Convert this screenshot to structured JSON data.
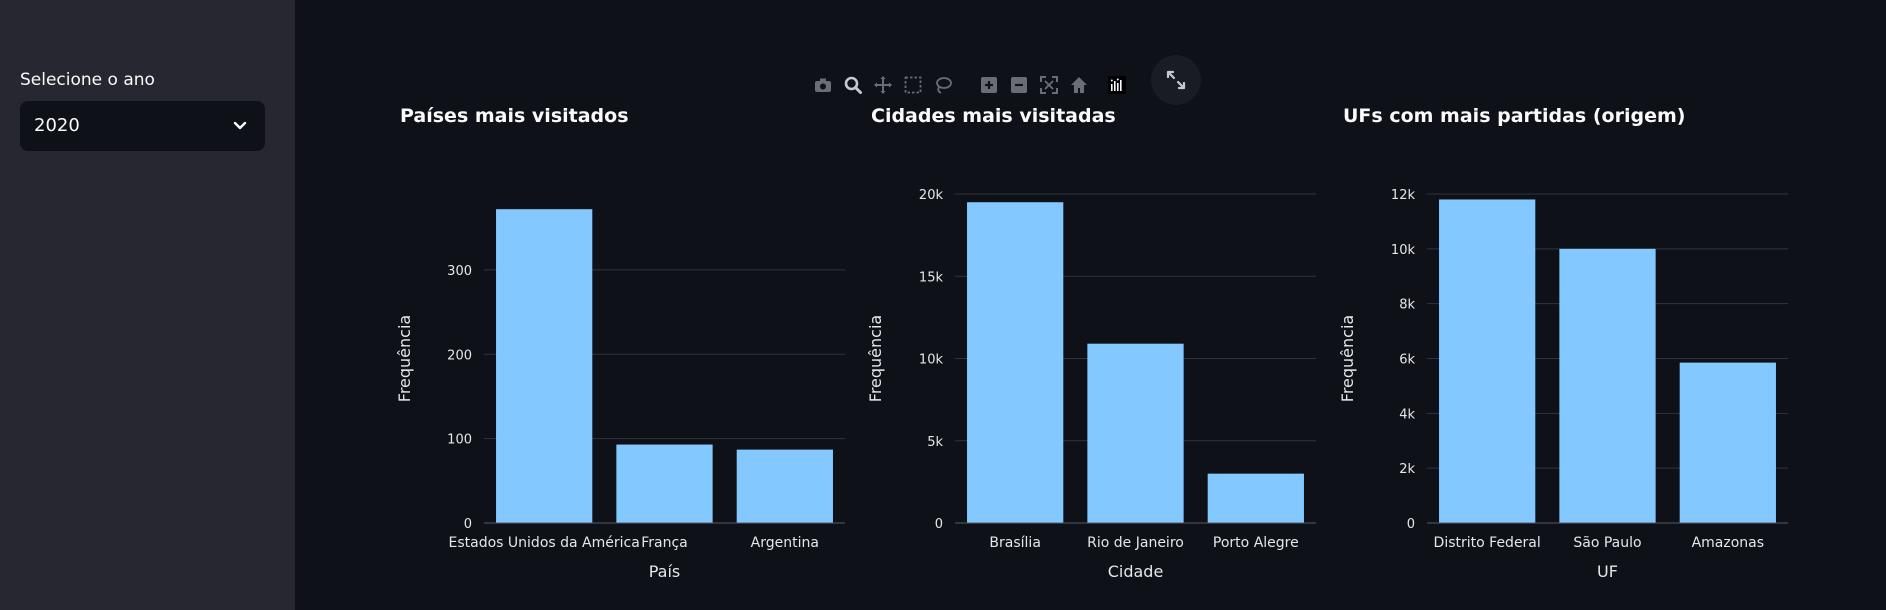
{
  "sidebar": {
    "select_label": "Selecione o ano",
    "selected_year": "2020"
  },
  "modebar": {
    "icons": [
      "camera-icon",
      "zoom-icon",
      "pan-icon",
      "box-select-icon",
      "lasso-icon",
      "zoom-in-icon",
      "zoom-out-icon",
      "autoscale-icon",
      "home-icon",
      "plotly-logo-icon"
    ],
    "fullscreen_icon": "fullscreen-icon"
  },
  "colors": {
    "bar": "#83c9ff",
    "background": "#0e1117",
    "sidebar": "#262730",
    "grid": "#31333f",
    "text": "#fafafa"
  },
  "chart_data": [
    {
      "type": "bar",
      "title": "Países mais visitados",
      "xlabel": "País",
      "ylabel": "Frequência",
      "categories": [
        "Estados Unidos da América",
        "França",
        "Argentina"
      ],
      "values": [
        372,
        93,
        87
      ],
      "ylim": [
        0,
        390
      ],
      "yticks": [
        0,
        100,
        200,
        300
      ],
      "ytick_labels": [
        "0",
        "100",
        "200",
        "300"
      ],
      "grid": true
    },
    {
      "type": "bar",
      "title": "Cidades mais visitadas",
      "xlabel": "Cidade",
      "ylabel": "Frequência",
      "categories": [
        "Brasília",
        "Rio de Janeiro",
        "Porto Alegre"
      ],
      "values": [
        19500,
        10900,
        3000
      ],
      "ylim": [
        0,
        20000
      ],
      "yticks": [
        0,
        5000,
        10000,
        15000,
        20000
      ],
      "ytick_labels": [
        "0",
        "5k",
        "10k",
        "15k",
        "20k"
      ],
      "grid": true
    },
    {
      "type": "bar",
      "title": "UFs com mais partidas (origem)",
      "xlabel": "UF",
      "ylabel": "Frequência",
      "categories": [
        "Distrito Federal",
        "São Paulo",
        "Amazonas"
      ],
      "values": [
        11800,
        10000,
        5850
      ],
      "ylim": [
        0,
        12000
      ],
      "yticks": [
        0,
        2000,
        4000,
        6000,
        8000,
        10000,
        12000
      ],
      "ytick_labels": [
        "0",
        "2k",
        "4k",
        "6k",
        "8k",
        "10k",
        "12k"
      ],
      "grid": true
    }
  ]
}
